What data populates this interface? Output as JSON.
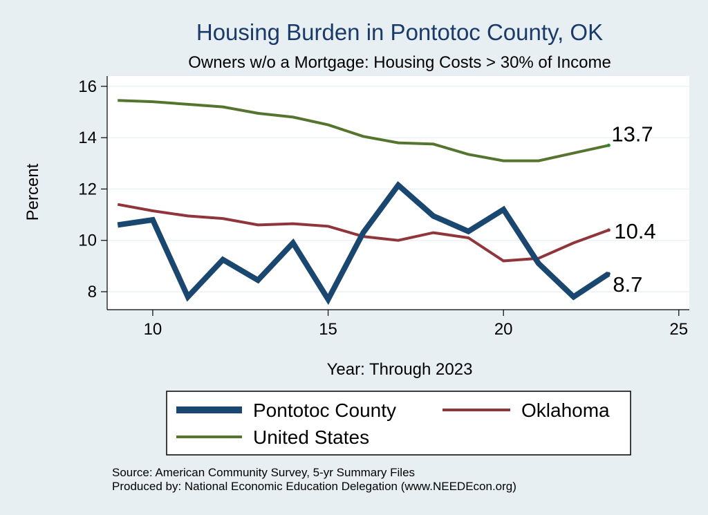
{
  "chart_data": {
    "type": "line",
    "title": "Housing Burden in Pontotoc County, OK",
    "subtitle": "Owners w/o a Mortgage: Housing Costs > 30% of Income",
    "xlabel": "Year: Through 2023",
    "ylabel": "Percent",
    "xlim": [
      8.7,
      25.3
    ],
    "ylim": [
      7.3,
      16.4
    ],
    "xticks": [
      10,
      15,
      20,
      25
    ],
    "yticks": [
      8,
      10,
      12,
      14,
      16
    ],
    "grid": true,
    "legend_position": "bottom",
    "x": [
      9,
      10,
      11,
      12,
      13,
      14,
      15,
      16,
      17,
      18,
      19,
      20,
      21,
      22,
      23
    ],
    "series": [
      {
        "name": "Pontotoc County",
        "color": "#1a476f",
        "values": [
          10.6,
          10.8,
          7.8,
          9.25,
          8.45,
          9.9,
          7.7,
          10.3,
          12.15,
          10.95,
          10.35,
          11.2,
          9.1,
          7.8,
          8.7
        ],
        "end_label": "8.7"
      },
      {
        "name": "Oklahoma",
        "color": "#90353b",
        "values": [
          11.4,
          11.15,
          10.95,
          10.85,
          10.6,
          10.65,
          10.55,
          10.15,
          10.0,
          10.3,
          10.1,
          9.2,
          9.3,
          9.9,
          10.4
        ],
        "end_label": "10.4"
      },
      {
        "name": "United States",
        "color": "#55752f",
        "values": [
          15.45,
          15.4,
          15.3,
          15.2,
          14.95,
          14.8,
          14.5,
          14.05,
          13.8,
          13.75,
          13.35,
          13.1,
          13.1,
          13.4,
          13.7
        ],
        "end_label": "13.7"
      }
    ]
  },
  "legend": {
    "items": [
      "Pontotoc County",
      "Oklahoma",
      "United States"
    ]
  },
  "notes": {
    "source": "Source: American Community Survey, 5-yr Summary Files",
    "produced": "Produced by: National Economic Education Delegation (www.NEEDEcon.org)"
  }
}
